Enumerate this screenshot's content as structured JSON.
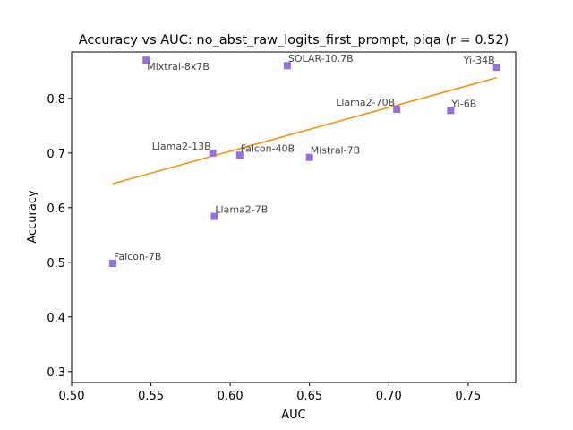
{
  "chart_data": {
    "type": "scatter",
    "title": "Accuracy vs AUC: no_abst_raw_logits_first_prompt, piqa (r = 0.52)",
    "xlabel": "AUC",
    "ylabel": "Accuracy",
    "xlim": [
      0.5,
      0.78
    ],
    "ylim": [
      0.28,
      0.885
    ],
    "xticks": [
      0.5,
      0.55,
      0.6,
      0.65,
      0.7,
      0.75
    ],
    "xtick_labels": [
      "0.50",
      "0.55",
      "0.60",
      "0.65",
      "0.70",
      "0.75"
    ],
    "yticks": [
      0.3,
      0.4,
      0.5,
      0.6,
      0.7,
      0.8
    ],
    "ytick_labels": [
      "0.3",
      "0.4",
      "0.5",
      "0.6",
      "0.7",
      "0.8"
    ],
    "grid": false,
    "marker_color": "#9370DB",
    "trend_color": "#FF8C00",
    "points": [
      {
        "label": "Mixtral-8x7B",
        "x": 0.547,
        "y": 0.87,
        "anchor": "right-below"
      },
      {
        "label": "SOLAR-10.7B",
        "x": 0.636,
        "y": 0.86,
        "anchor": "right-above"
      },
      {
        "label": "Yi-34B",
        "x": 0.768,
        "y": 0.857,
        "anchor": "left-above"
      },
      {
        "label": "Llama2-70B",
        "x": 0.705,
        "y": 0.78,
        "anchor": "left-above"
      },
      {
        "label": "Yi-6B",
        "x": 0.739,
        "y": 0.778,
        "anchor": "right-above"
      },
      {
        "label": "Llama2-13B",
        "x": 0.589,
        "y": 0.7,
        "anchor": "left-above"
      },
      {
        "label": "Falcon-40B",
        "x": 0.606,
        "y": 0.696,
        "anchor": "right-above"
      },
      {
        "label": "Mistral-7B",
        "x": 0.65,
        "y": 0.692,
        "anchor": "right-above"
      },
      {
        "label": "Llama2-7B",
        "x": 0.59,
        "y": 0.584,
        "anchor": "right-above"
      },
      {
        "label": "Falcon-7B",
        "x": 0.526,
        "y": 0.498,
        "anchor": "right-above"
      }
    ],
    "trendline": {
      "x": [
        0.526,
        0.768
      ],
      "y": [
        0.644,
        0.838
      ]
    }
  }
}
